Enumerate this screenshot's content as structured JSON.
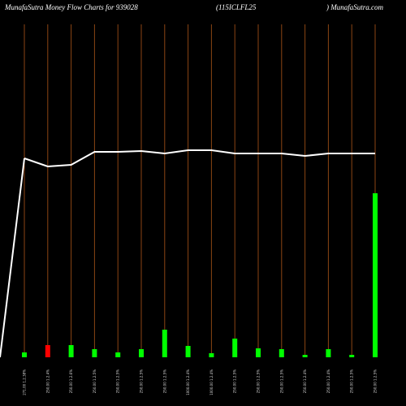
{
  "chart_data": {
    "type": "bar",
    "title": "MunafaSutra  Money Flow  Charts for 939028",
    "subtitle": "(115ICLFL25",
    "source": ") MunafaSutra.com",
    "categories": [
      "271.00 1.2.38%",
      "250.00 1.2.4%",
      "250.00 1.2.6%",
      "250.00 1.2.5%",
      "250.00 1.2.5%",
      "250.00 1.2.5%",
      "250.00 1.2.5%",
      "1000.00 1.2.4%",
      "1000.00 1.2.4%",
      "250.00 1.2.5%",
      "250.00 1.2.5%",
      "250.00 1.2.5%",
      "250.00 1.2.4%",
      "250.00 1.2.4%",
      "250.00 1.2.5%",
      "250.00 1.2.5%"
    ],
    "values": [
      6,
      15,
      15,
      10,
      6,
      10,
      34,
      14,
      5,
      23,
      11,
      10,
      3,
      10,
      3,
      202
    ],
    "colors": [
      "#00ff00",
      "#ff0000",
      "#00ff00",
      "#00ff00",
      "#00ff00",
      "#00ff00",
      "#00ff00",
      "#00ff00",
      "#00ff00",
      "#00ff00",
      "#00ff00",
      "#00ff00",
      "#00ff00",
      "#00ff00",
      "#00ff00",
      "#00ff00"
    ],
    "line_values": [
      245,
      235,
      237,
      253,
      253,
      254,
      251,
      255,
      255,
      251,
      251,
      251,
      248,
      251,
      251,
      251
    ],
    "line_color": "#ffffff",
    "grid_color": "#8b4513",
    "ylim": [
      0,
      400
    ]
  }
}
